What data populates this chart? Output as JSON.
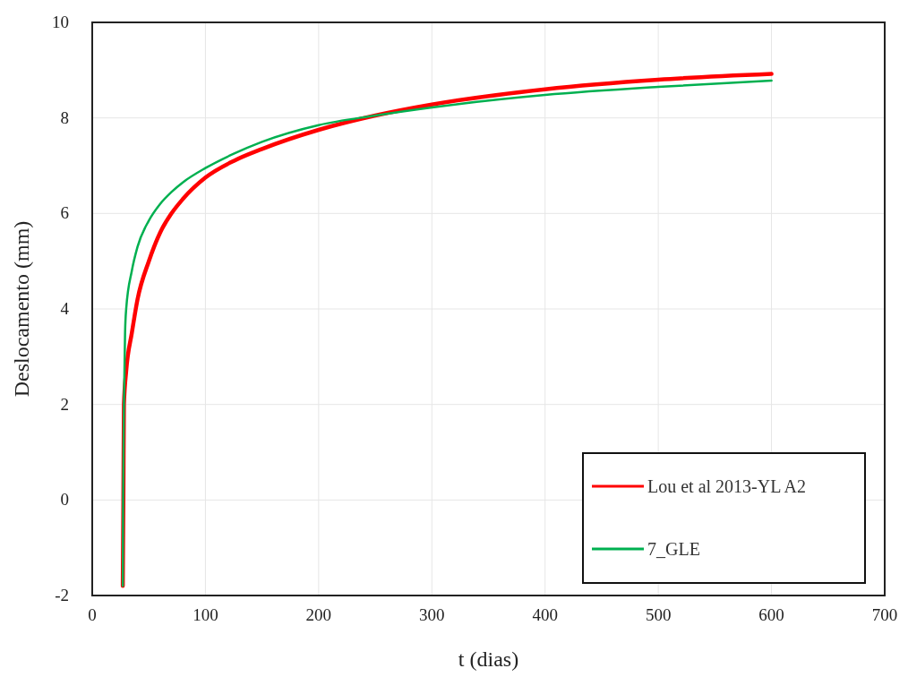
{
  "chart_data": {
    "type": "line",
    "xlabel": "t (dias)",
    "ylabel": "Deslocamento (mm)",
    "xlim": [
      0,
      700
    ],
    "xticks": [
      0,
      100,
      200,
      300,
      400,
      500,
      600,
      700
    ],
    "ylim": [
      -2,
      10
    ],
    "yticks": [
      -2,
      0,
      2,
      4,
      6,
      8,
      10
    ],
    "grid": true,
    "legend": "bottom right",
    "line_style": "solid",
    "marker": "none",
    "series": [
      {
        "name": "Lou et al 2013-YL A2",
        "color": "#ff0000",
        "x": [
          27,
          27.5,
          28,
          30,
          35,
          40,
          50,
          60,
          70,
          80,
          100,
          125,
          150,
          200,
          250,
          300,
          400,
          500,
          600
        ],
        "values": [
          -1.8,
          0,
          2,
          2.7,
          3.5,
          4.2,
          5.0,
          5.6,
          6.0,
          6.3,
          6.75,
          7.1,
          7.35,
          7.75,
          8.05,
          8.28,
          8.6,
          8.8,
          8.92
        ]
      },
      {
        "name": "7_GLE",
        "color": "#00b050",
        "x": [
          27,
          27.3,
          28,
          29,
          30,
          35,
          40,
          50,
          60,
          70,
          80,
          100,
          125,
          150,
          200,
          250,
          300,
          400,
          500,
          600
        ],
        "values": [
          -1.8,
          0,
          2,
          3.5,
          4.0,
          4.8,
          5.3,
          5.85,
          6.2,
          6.45,
          6.65,
          6.95,
          7.25,
          7.5,
          7.85,
          8.05,
          8.22,
          8.48,
          8.65,
          8.78
        ]
      }
    ]
  }
}
